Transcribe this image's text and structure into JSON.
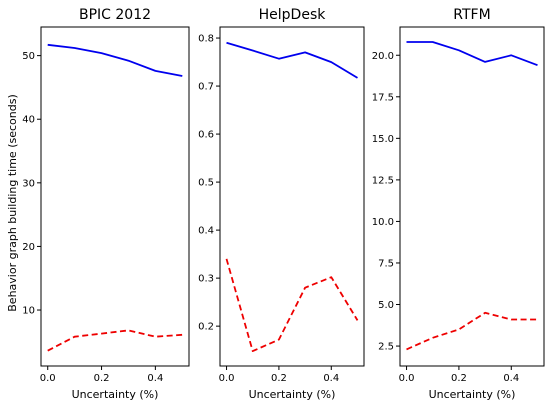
{
  "chart_data": [
    {
      "type": "line",
      "title": "BPIC 2012",
      "xlabel": "Uncertainty (%)",
      "ylabel": "Behavior graph building time (seconds)",
      "x": [
        0.0,
        0.1,
        0.2,
        0.3,
        0.4,
        0.5
      ],
      "xlim": [
        -0.025,
        0.525
      ],
      "ylim": [
        1.2,
        54.5
      ],
      "xticks": [
        "0.0",
        "0.2",
        "0.4"
      ],
      "xtick_values": [
        0.0,
        0.2,
        0.4
      ],
      "yticks": [
        "10",
        "20",
        "30",
        "40",
        "50"
      ],
      "ytick_values": [
        10,
        20,
        30,
        40,
        50
      ],
      "grid": false,
      "series": [
        {
          "color": "#0000ee",
          "style": "solid",
          "values": [
            51.7,
            51.2,
            50.4,
            49.2,
            47.6,
            46.8
          ]
        },
        {
          "color": "#ee0000",
          "style": "dashed",
          "values": [
            3.6,
            5.8,
            6.3,
            6.8,
            5.8,
            6.1
          ]
        }
      ]
    },
    {
      "type": "line",
      "title": "HelpDesk",
      "xlabel": "Uncertainty (%)",
      "ylabel": "",
      "x": [
        0.0,
        0.1,
        0.2,
        0.3,
        0.4,
        0.5
      ],
      "xlim": [
        -0.025,
        0.525
      ],
      "ylim": [
        0.117,
        0.823
      ],
      "xticks": [
        "0.0",
        "0.2",
        "0.4"
      ],
      "xtick_values": [
        0.0,
        0.2,
        0.4
      ],
      "yticks": [
        "0.2",
        "0.3",
        "0.4",
        "0.5",
        "0.6",
        "0.7",
        "0.8"
      ],
      "ytick_values": [
        0.2,
        0.3,
        0.4,
        0.5,
        0.6,
        0.7,
        0.8
      ],
      "grid": false,
      "series": [
        {
          "color": "#0000ee",
          "style": "solid",
          "values": [
            0.79,
            0.774,
            0.757,
            0.77,
            0.75,
            0.717
          ]
        },
        {
          "color": "#ee0000",
          "style": "dashed",
          "values": [
            0.34,
            0.148,
            0.172,
            0.28,
            0.302,
            0.212
          ]
        }
      ]
    },
    {
      "type": "line",
      "title": "RTFM",
      "xlabel": "Uncertainty (%)",
      "ylabel": "",
      "x": [
        0.0,
        0.1,
        0.2,
        0.3,
        0.4,
        0.5
      ],
      "xlim": [
        -0.025,
        0.525
      ],
      "ylim": [
        1.3,
        21.7
      ],
      "xticks": [
        "0.0",
        "0.2",
        "0.4"
      ],
      "xtick_values": [
        0.0,
        0.2,
        0.4
      ],
      "yticks": [
        "2.5",
        "5.0",
        "7.5",
        "10.0",
        "12.5",
        "15.0",
        "17.5",
        "20.0"
      ],
      "ytick_values": [
        2.5,
        5.0,
        7.5,
        10.0,
        12.5,
        15.0,
        17.5,
        20.0
      ],
      "grid": false,
      "series": [
        {
          "color": "#0000ee",
          "style": "solid",
          "values": [
            20.8,
            20.8,
            20.3,
            19.6,
            20.0,
            19.4
          ]
        },
        {
          "color": "#ee0000",
          "style": "dashed",
          "values": [
            2.3,
            3.0,
            3.5,
            4.5,
            4.1,
            4.1
          ]
        }
      ]
    }
  ]
}
